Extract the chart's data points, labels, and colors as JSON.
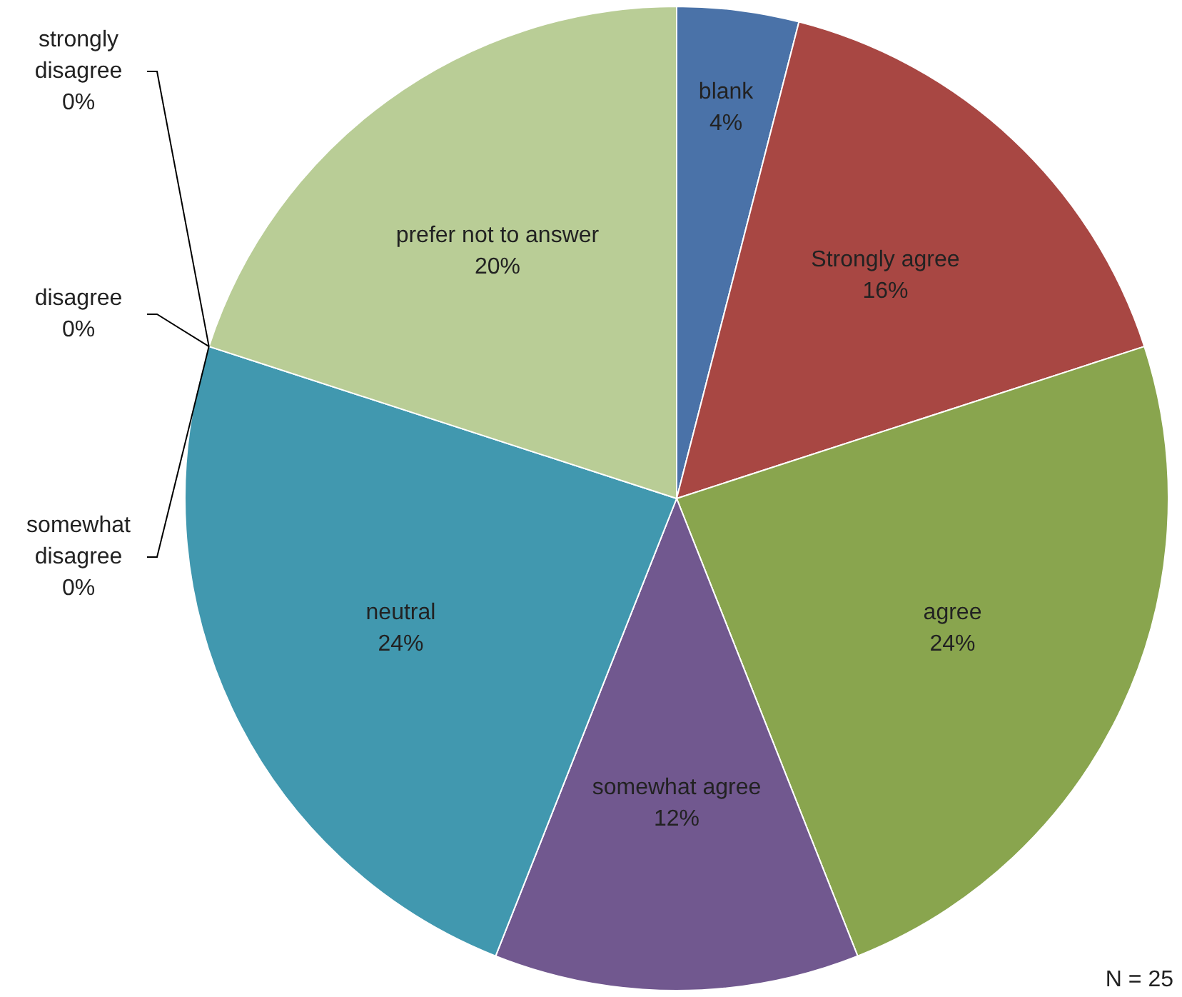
{
  "chart_data": {
    "type": "pie",
    "categories": [
      "blank",
      "Strongly agree",
      "agree",
      "somewhat agree",
      "neutral",
      "somewhat disagree",
      "disagree",
      "strongly disagree",
      "prefer not to answer"
    ],
    "values": [
      4,
      16,
      24,
      12,
      24,
      0,
      0,
      0,
      20
    ],
    "value_labels": [
      "4%",
      "16%",
      "24%",
      "12%",
      "24%",
      "0%",
      "0%",
      "0%",
      "20%"
    ],
    "colors": [
      "#4a72a8",
      "#a84743",
      "#89a54e",
      "#71588f",
      "#4198af",
      "#db843d",
      "#93a9cf",
      "#d19392",
      "#b9cd96"
    ],
    "annotations": [
      "N = 25"
    ],
    "legend": false
  }
}
